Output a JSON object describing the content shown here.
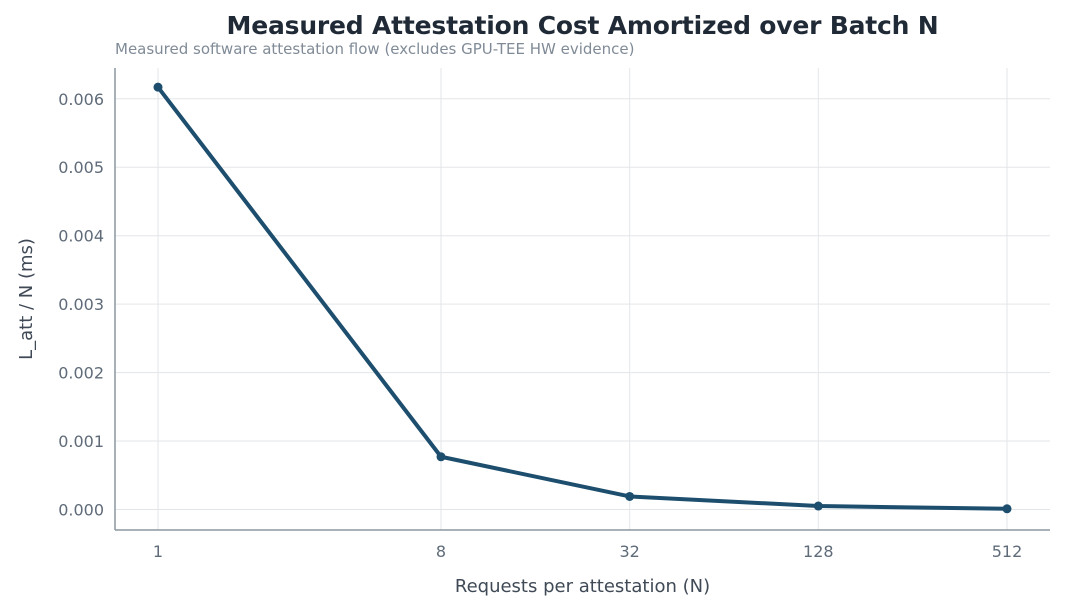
{
  "chart_data": {
    "type": "line",
    "title": "Measured Attestation Cost Amortized over Batch N",
    "subtitle": "Measured software attestation flow (excludes GPU-TEE HW evidence)",
    "xlabel": "Requests per attestation (N)",
    "ylabel": "L_att / N (ms)",
    "x_scale": "log2",
    "x": [
      1,
      8,
      32,
      128,
      512
    ],
    "x_tick_labels": [
      "1",
      "8",
      "32",
      "128",
      "512"
    ],
    "series": [
      {
        "values": [
          0.00617,
          0.00077,
          0.00019,
          5e-05,
          1e-05
        ]
      }
    ],
    "y_ticks": [
      0.0,
      0.001,
      0.002,
      0.003,
      0.004,
      0.005,
      0.006
    ],
    "y_tick_labels": [
      "0.000",
      "0.001",
      "0.002",
      "0.003",
      "0.004",
      "0.005",
      "0.006"
    ],
    "ylim": [
      -0.0003,
      0.00645
    ],
    "grid": true,
    "legend": "none",
    "colors": {
      "line": "#1d4e6e",
      "grid": "#e3e6e9",
      "axis": "#8a979f"
    }
  }
}
